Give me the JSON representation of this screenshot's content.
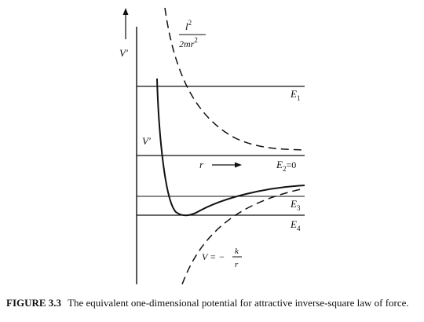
{
  "figure": {
    "caption_label": "FIGURE 3.3",
    "caption_text": "The equivalent one-dimensional potential for attractive inverse-square law of force."
  },
  "labels": {
    "y_axis": "V'",
    "centrifugal_num": "l",
    "centrifugal_num_exp": "2",
    "centrifugal_den": "2mr",
    "centrifugal_den_exp": "2",
    "v_prime_curve": "V'",
    "r_arrow": "r",
    "potential_lhs": "V = −",
    "potential_num": "k",
    "potential_den": "r"
  },
  "energy_levels": [
    {
      "name": "E",
      "sub": "1",
      "suffix": ""
    },
    {
      "name": "E",
      "sub": "2",
      "suffix": "=0"
    },
    {
      "name": "E",
      "sub": "3",
      "suffix": ""
    },
    {
      "name": "E",
      "sub": "4",
      "suffix": ""
    }
  ],
  "colors": {
    "ink": "#111111",
    "background": "#ffffff"
  }
}
